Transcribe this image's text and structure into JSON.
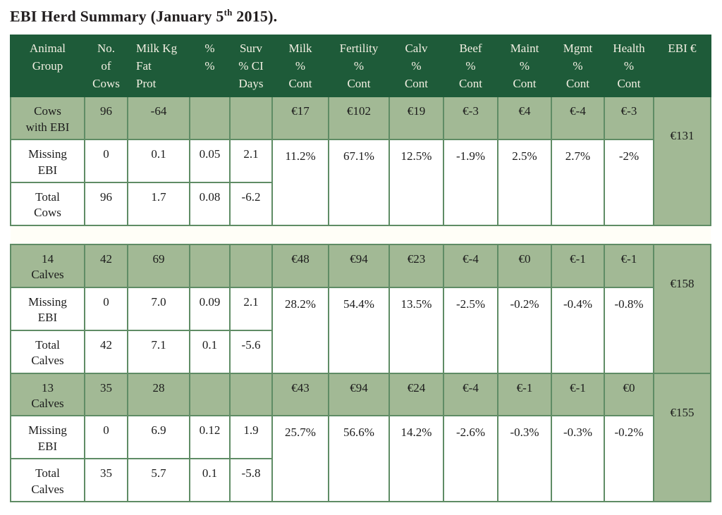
{
  "title": {
    "before_sup": "EBI Herd Summary (January 5",
    "sup": "th",
    "after_sup": " 2015)."
  },
  "colors": {
    "header_green": "#1e5b39",
    "row_green": "#a2b995",
    "border_green": "#5f8c65",
    "header_text": "#f2efe2"
  },
  "table": {
    "headers": [
      {
        "key": "animal-group",
        "lines": [
          "Animal",
          "Group"
        ],
        "align": "center"
      },
      {
        "key": "no-of-cows",
        "lines": [
          "No.",
          "of",
          "Cows"
        ],
        "align": "center"
      },
      {
        "key": "milk-kg",
        "lines": [
          "Milk Kg",
          "Fat",
          "Prot"
        ],
        "align": "left"
      },
      {
        "key": "pct-pct",
        "lines": [
          "",
          "%",
          "%"
        ],
        "align": "center"
      },
      {
        "key": "surv",
        "lines": [
          "Surv",
          "% CI",
          "Days"
        ],
        "align": "center"
      },
      {
        "key": "milk-cont",
        "lines": [
          "Milk",
          "%",
          "Cont"
        ],
        "align": "center"
      },
      {
        "key": "fertility-cont",
        "lines": [
          "Fertility",
          "%",
          "Cont"
        ],
        "align": "center"
      },
      {
        "key": "calv-cont",
        "lines": [
          "Calv",
          "%",
          "Cont"
        ],
        "align": "center"
      },
      {
        "key": "beef-cont",
        "lines": [
          "Beef",
          "%",
          "Cont"
        ],
        "align": "center"
      },
      {
        "key": "maint-cont",
        "lines": [
          "Maint",
          "%",
          "Cont"
        ],
        "align": "center"
      },
      {
        "key": "mgmt-cont",
        "lines": [
          "Mgmt",
          "%",
          "Cont"
        ],
        "align": "center"
      },
      {
        "key": "health-cont",
        "lines": [
          "Health",
          "%",
          "Cont"
        ],
        "align": "center"
      },
      {
        "key": "ebi-eur",
        "lines": [
          "EBI €"
        ],
        "align": "center"
      }
    ],
    "cont_keys": [
      "milk",
      "fertility",
      "calv",
      "beef",
      "maint",
      "mgmt",
      "health"
    ],
    "groups": [
      {
        "group_row": {
          "label_lines": [
            "Cows",
            "with EBI"
          ],
          "no_cows": "96",
          "milk_kg": "-64",
          "pct": "",
          "surv": "",
          "conts": [
            "€17",
            "€102",
            "€19",
            "€-3",
            "€4",
            "€-4",
            "€-3"
          ],
          "ebi": "€131"
        },
        "missing_row": {
          "label_lines": [
            "Missing",
            "EBI"
          ],
          "no_cows": "0",
          "milk_kg": "0.1",
          "pct": "0.05",
          "surv": "2.1",
          "conts": [
            "11.2%",
            "67.1%",
            "12.5%",
            "-1.9%",
            "2.5%",
            "2.7%",
            "-2%"
          ]
        },
        "total_row": {
          "label_lines": [
            "Total",
            "Cows"
          ],
          "no_cows": "96",
          "milk_kg": "1.7",
          "pct": "0.08",
          "surv": "-6.2"
        },
        "spacer_after": true
      },
      {
        "group_row": {
          "label_lines": [
            "14",
            "Calves"
          ],
          "no_cows": "42",
          "milk_kg": "69",
          "pct": "",
          "surv": "",
          "conts": [
            "€48",
            "€94",
            "€23",
            "€-4",
            "€0",
            "€-1",
            "€-1"
          ],
          "ebi": "€158"
        },
        "missing_row": {
          "label_lines": [
            "Missing",
            "EBI"
          ],
          "no_cows": "0",
          "milk_kg": "7.0",
          "pct": "0.09",
          "surv": "2.1",
          "conts": [
            "28.2%",
            "54.4%",
            "13.5%",
            "-2.5%",
            "-0.2%",
            "-0.4%",
            "-0.8%"
          ]
        },
        "total_row": {
          "label_lines": [
            "Total",
            "Calves"
          ],
          "no_cows": "42",
          "milk_kg": "7.1",
          "pct": "0.1",
          "surv": "-5.6"
        },
        "spacer_after": false
      },
      {
        "group_row": {
          "label_lines": [
            "13",
            "Calves"
          ],
          "no_cows": "35",
          "milk_kg": "28",
          "pct": "",
          "surv": "",
          "conts": [
            "€43",
            "€94",
            "€24",
            "€-4",
            "€-1",
            "€-1",
            "€0"
          ],
          "ebi": "€155"
        },
        "missing_row": {
          "label_lines": [
            "Missing",
            "EBI"
          ],
          "no_cows": "0",
          "milk_kg": "6.9",
          "pct": "0.12",
          "surv": "1.9",
          "conts": [
            "25.7%",
            "56.6%",
            "14.2%",
            "-2.6%",
            "-0.3%",
            "-0.3%",
            "-0.2%"
          ]
        },
        "total_row": {
          "label_lines": [
            "Total",
            "Calves"
          ],
          "no_cows": "35",
          "milk_kg": "5.7",
          "pct": "0.1",
          "surv": "-5.8"
        },
        "spacer_after": false
      }
    ]
  }
}
